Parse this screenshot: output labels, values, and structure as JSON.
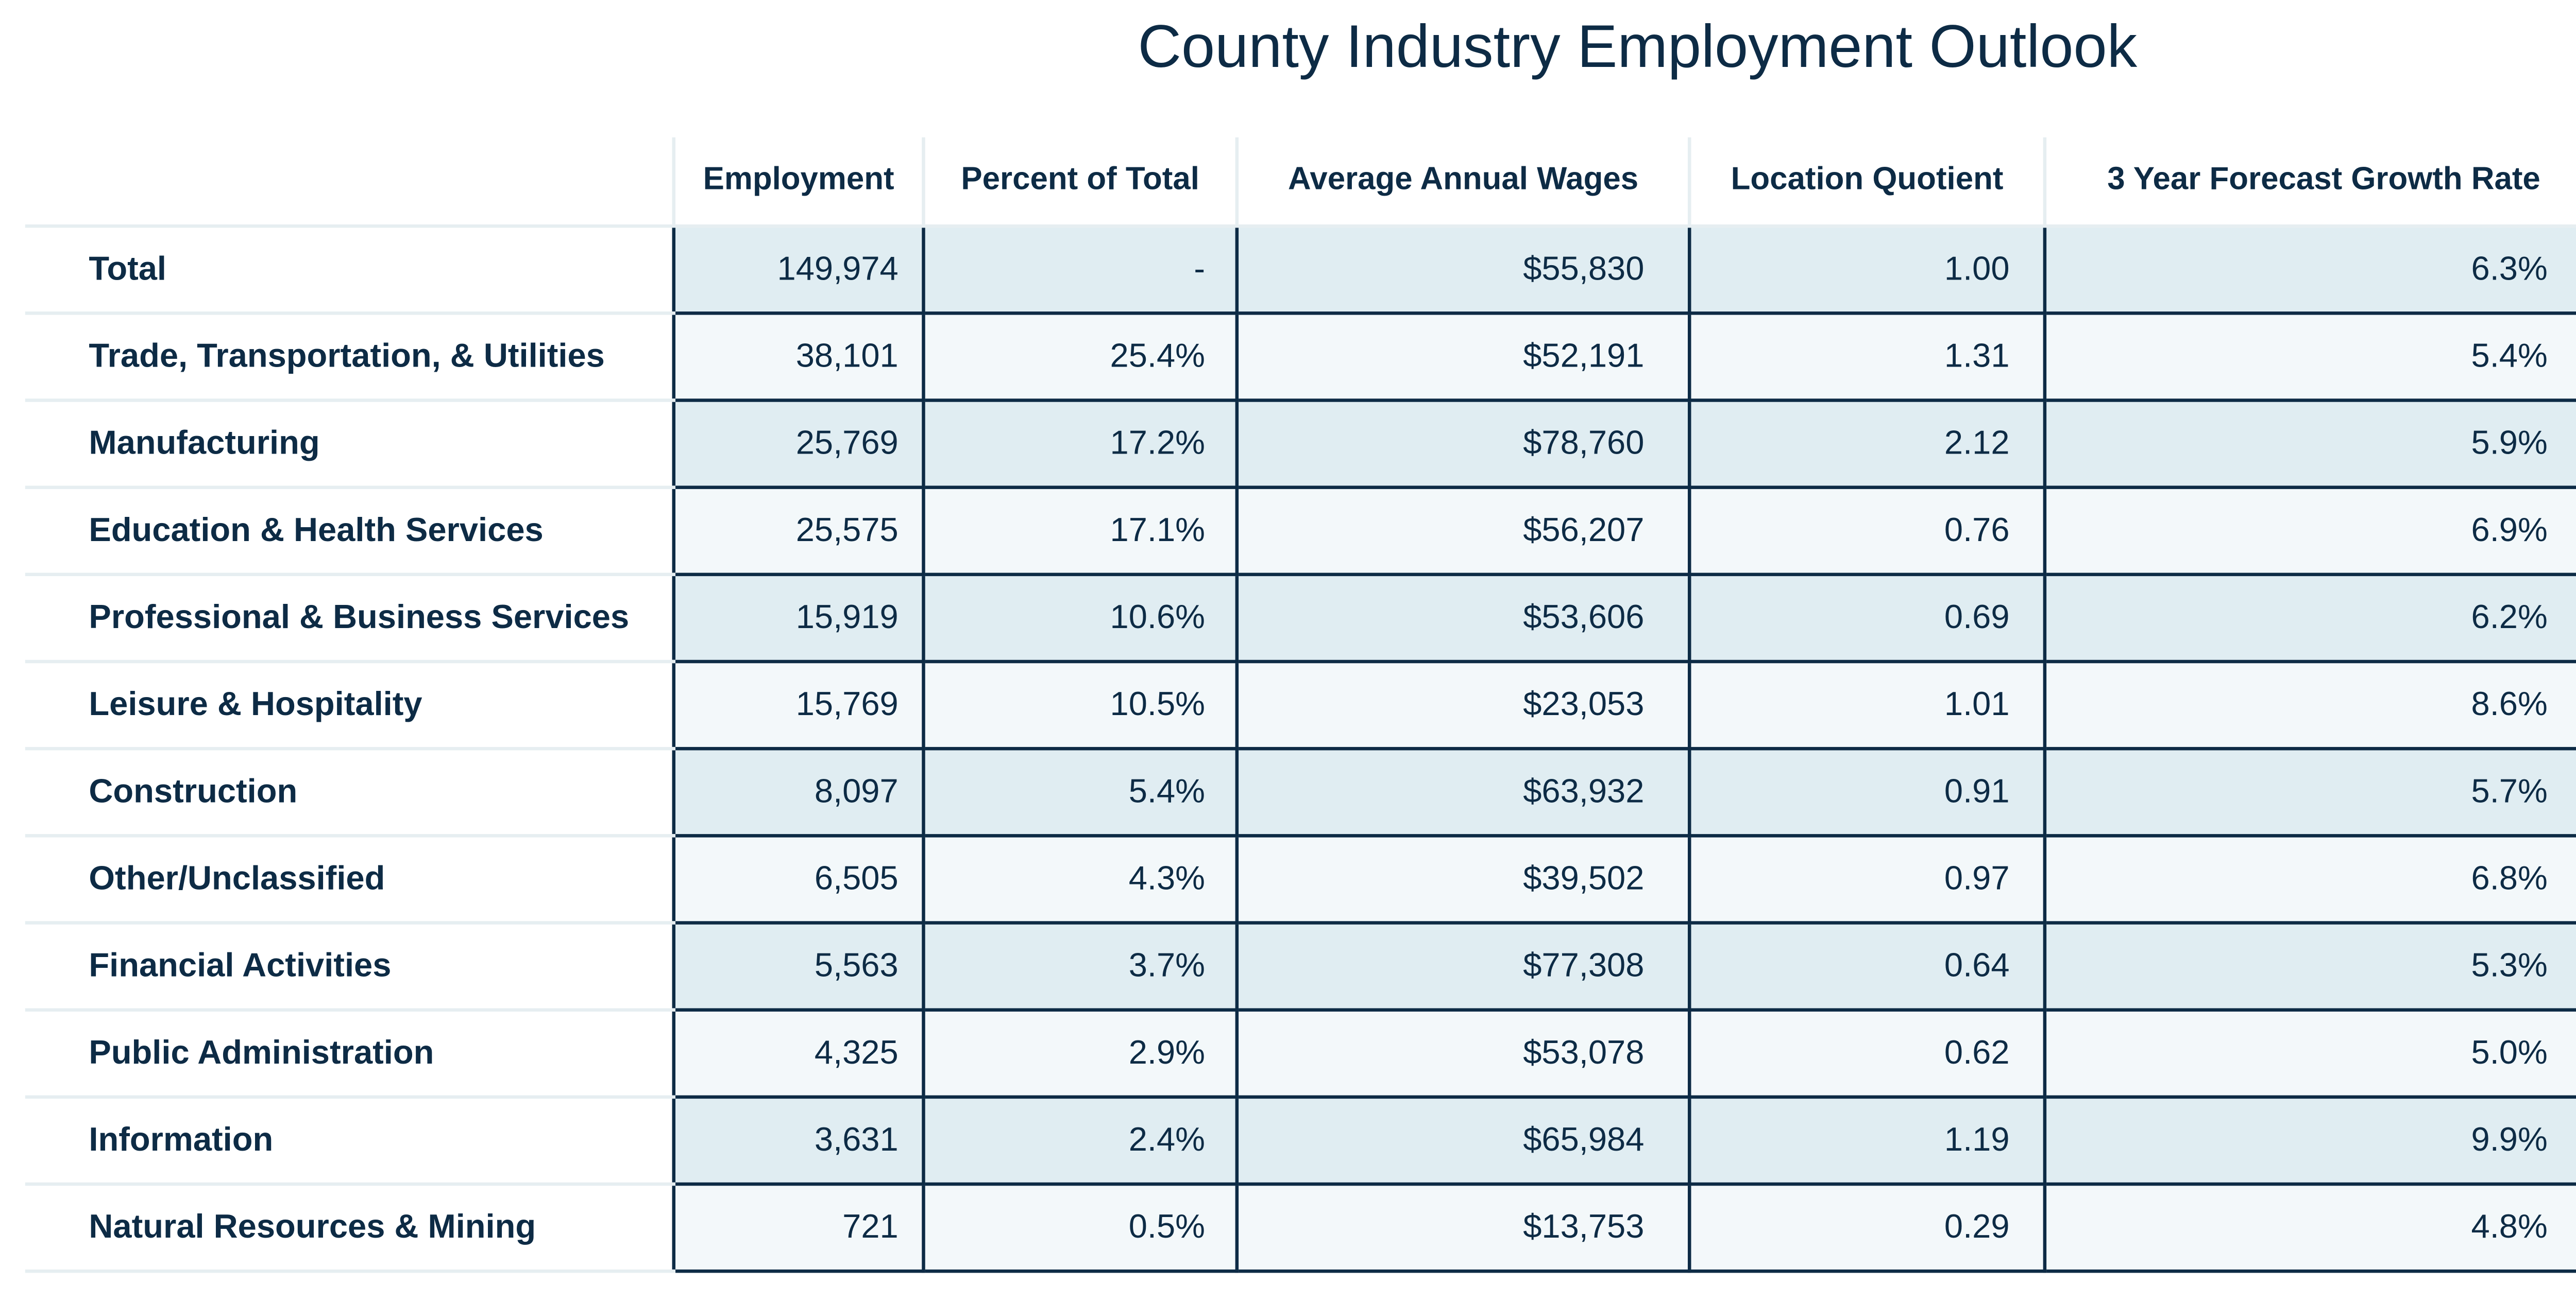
{
  "chart_data": {
    "type": "table",
    "title": "County Industry Employment Outlook",
    "columns": [
      "Employment",
      "Percent of Total",
      "Average Annual Wages",
      "Location Quotient",
      "3 Year Forecast Growth Rate"
    ],
    "rows": [
      {
        "industry": "Total",
        "employment": "149,974",
        "percent": "-",
        "wages": "$55,830",
        "lq": "1.00",
        "growth": "6.3%"
      },
      {
        "industry": "Trade, Transportation, & Utilities",
        "employment": "38,101",
        "percent": "25.4%",
        "wages": "$52,191",
        "lq": "1.31",
        "growth": "5.4%"
      },
      {
        "industry": "Manufacturing",
        "employment": "25,769",
        "percent": "17.2%",
        "wages": "$78,760",
        "lq": "2.12",
        "growth": "5.9%"
      },
      {
        "industry": "Education & Health Services",
        "employment": "25,575",
        "percent": "17.1%",
        "wages": "$56,207",
        "lq": "0.76",
        "growth": "6.9%"
      },
      {
        "industry": "Professional & Business Services",
        "employment": "15,919",
        "percent": "10.6%",
        "wages": "$53,606",
        "lq": "0.69",
        "growth": "6.2%"
      },
      {
        "industry": "Leisure & Hospitality",
        "employment": "15,769",
        "percent": "10.5%",
        "wages": "$23,053",
        "lq": "1.01",
        "growth": "8.6%"
      },
      {
        "industry": "Construction",
        "employment": "8,097",
        "percent": "5.4%",
        "wages": "$63,932",
        "lq": "0.91",
        "growth": "5.7%"
      },
      {
        "industry": "Other/Unclassified",
        "employment": "6,505",
        "percent": "4.3%",
        "wages": "$39,502",
        "lq": "0.97",
        "growth": "6.8%"
      },
      {
        "industry": "Financial Activities",
        "employment": "5,563",
        "percent": "3.7%",
        "wages": "$77,308",
        "lq": "0.64",
        "growth": "5.3%"
      },
      {
        "industry": "Public Administration",
        "employment": "4,325",
        "percent": "2.9%",
        "wages": "$53,078",
        "lq": "0.62",
        "growth": "5.0%"
      },
      {
        "industry": "Information",
        "employment": "3,631",
        "percent": "2.4%",
        "wages": "$65,984",
        "lq": "1.19",
        "growth": "9.9%"
      },
      {
        "industry": "Natural Resources & Mining",
        "employment": "721",
        "percent": "0.5%",
        "wages": "$13,753",
        "lq": "0.29",
        "growth": "4.8%"
      }
    ]
  },
  "colors": {
    "text": "#0d2b45",
    "row_shade_dark": "#e0edf2",
    "row_shade_light": "#f3f8fa",
    "grid_light": "#e6eef1",
    "cell_border": "#0d2b45"
  }
}
